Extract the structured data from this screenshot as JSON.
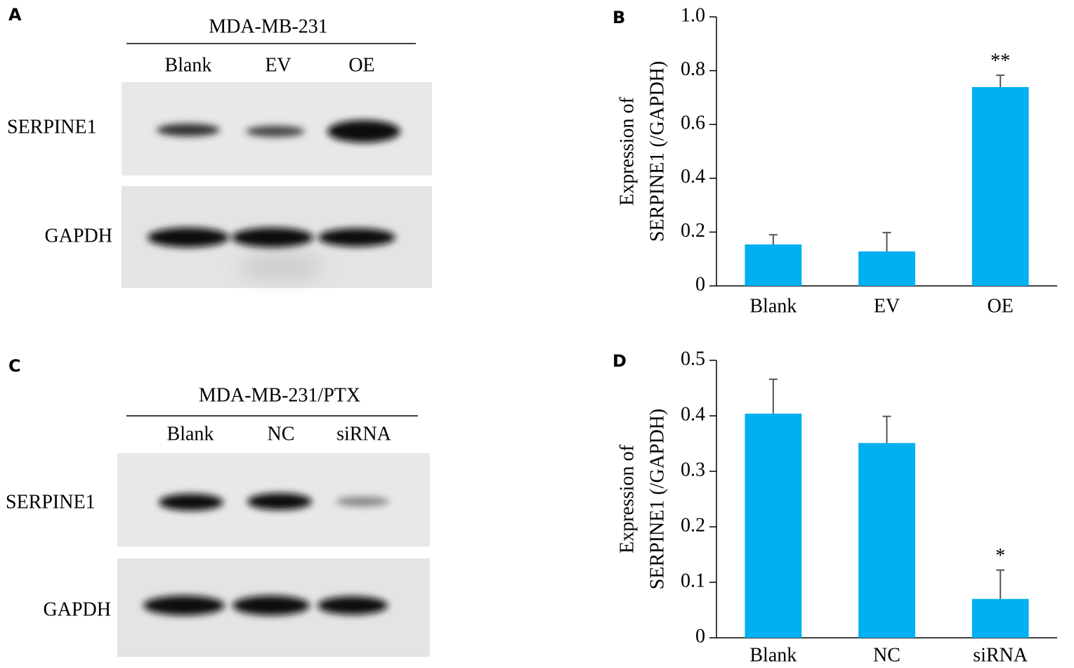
{
  "blots": [
    {
      "label": "A",
      "cell_line": "MDA-MB-231",
      "lanes": [
        "Blank",
        "EV",
        "OE"
      ],
      "rows": [
        "SERPINE1",
        "GAPDH"
      ]
    },
    {
      "label": "C",
      "cell_line": "MDA-MB-231/PTX",
      "lanes": [
        "Blank",
        "NC",
        "siRNA"
      ],
      "rows": [
        "SERPINE1",
        "GAPDH"
      ]
    }
  ],
  "chart_data": [
    {
      "type": "bar",
      "panel": "B",
      "y_label": [
        "Expression of",
        "SERPINE1 (/GAPDH)"
      ],
      "categories": [
        "Blank",
        "EV",
        "OE"
      ],
      "values": [
        0.154,
        0.128,
        0.739
      ],
      "errors": [
        0.036,
        0.07,
        0.044
      ],
      "annotations": [
        {
          "index": 2,
          "text": "**"
        }
      ],
      "color": "#00b0f0",
      "ylim": [
        0,
        1
      ],
      "yticks": [
        0,
        0.2,
        0.4,
        0.6,
        0.8,
        {
          "value": 1,
          "label": "1.0"
        }
      ]
    },
    {
      "type": "bar",
      "panel": "D",
      "y_label": [
        "Expression of",
        "SERPINE1 (/GAPDH)"
      ],
      "categories": [
        "Blank",
        "NC",
        "siRNA"
      ],
      "values": [
        0.404,
        0.351,
        0.07
      ],
      "errors": [
        0.062,
        0.048,
        0.052
      ],
      "annotations": [
        {
          "index": 2,
          "text": "*"
        }
      ],
      "color": "#00b0f0",
      "ylim": [
        0,
        0.5
      ],
      "yticks": [
        0,
        0.1,
        0.2,
        0.3,
        0.4,
        0.5
      ]
    }
  ]
}
